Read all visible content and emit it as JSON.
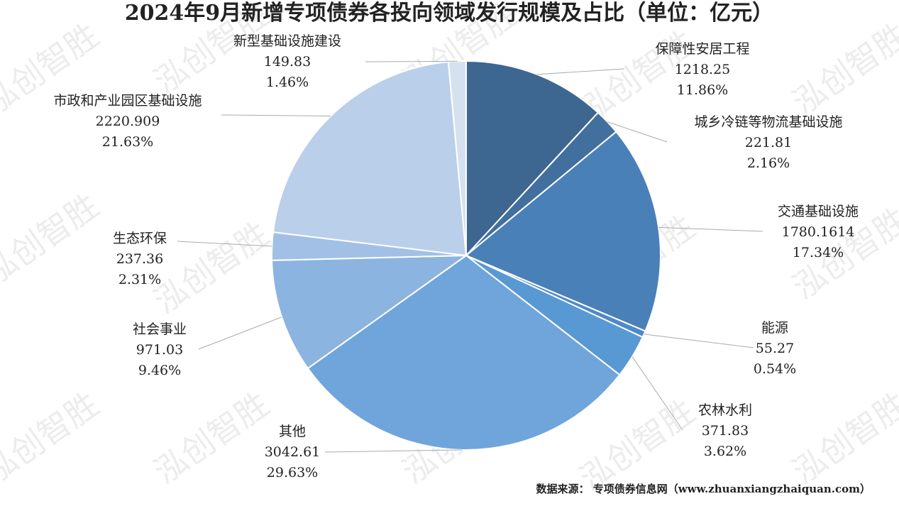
{
  "chart_data": {
    "type": "pie",
    "title": "2024年9月新增专项债券各投向领域发行规模及占比（单位：亿元）",
    "categories": [
      "保障性安居工程",
      "城乡冷链等物流基础设施",
      "交通基础设施",
      "能源",
      "农林水利",
      "其他",
      "社会事业",
      "生态环保",
      "市政和产业园区基础设施",
      "新型基础设施建设"
    ],
    "values": [
      1218.25,
      221.81,
      1780.1614,
      55.27,
      371.83,
      3042.61,
      971.03,
      237.36,
      2220.909,
      149.83
    ],
    "percent_labels": [
      "11.86%",
      "2.16%",
      "17.34%",
      "0.54%",
      "3.62%",
      "29.63%",
      "9.46%",
      "2.31%",
      "21.63%",
      "1.46%"
    ],
    "colors": [
      "#3d6690",
      "#416f9e",
      "#4a80b8",
      "#4f8ac6",
      "#5899d4",
      "#70a5dc",
      "#8cb4e0",
      "#a2c0e5",
      "#bacfe9",
      "#d6e1f0"
    ],
    "source": "数据来源：  专项债券信息网（www.zhuanxiangzhaiquan.com）",
    "watermark": "泓创智胜"
  }
}
